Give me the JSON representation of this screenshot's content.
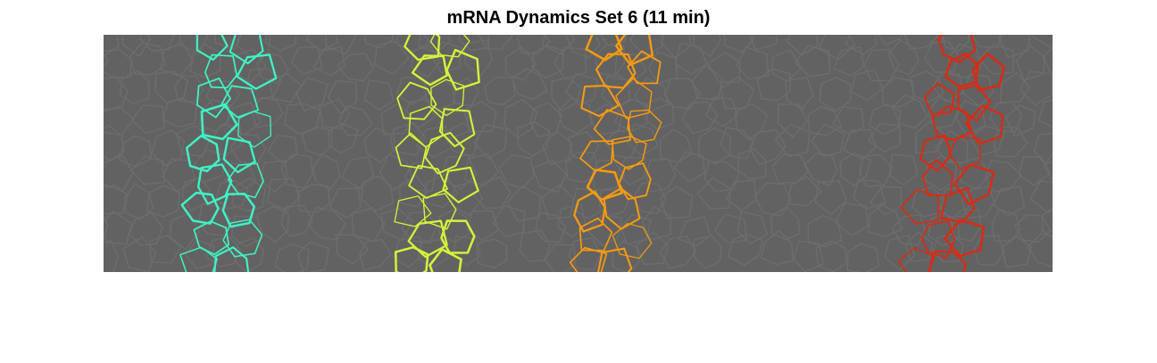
{
  "figure": {
    "title": "mRNA Dynamics Set 6 (11 min)"
  },
  "image": {
    "description_colors": {
      "background": "#626262",
      "cell_edges_gray": "#6d6d6d",
      "stripe_cyan": "#3ff2c4",
      "stripe_yellow": "#d6f23a",
      "stripe_orange": "#f59a12",
      "stripe_red": "#e0280f"
    }
  }
}
